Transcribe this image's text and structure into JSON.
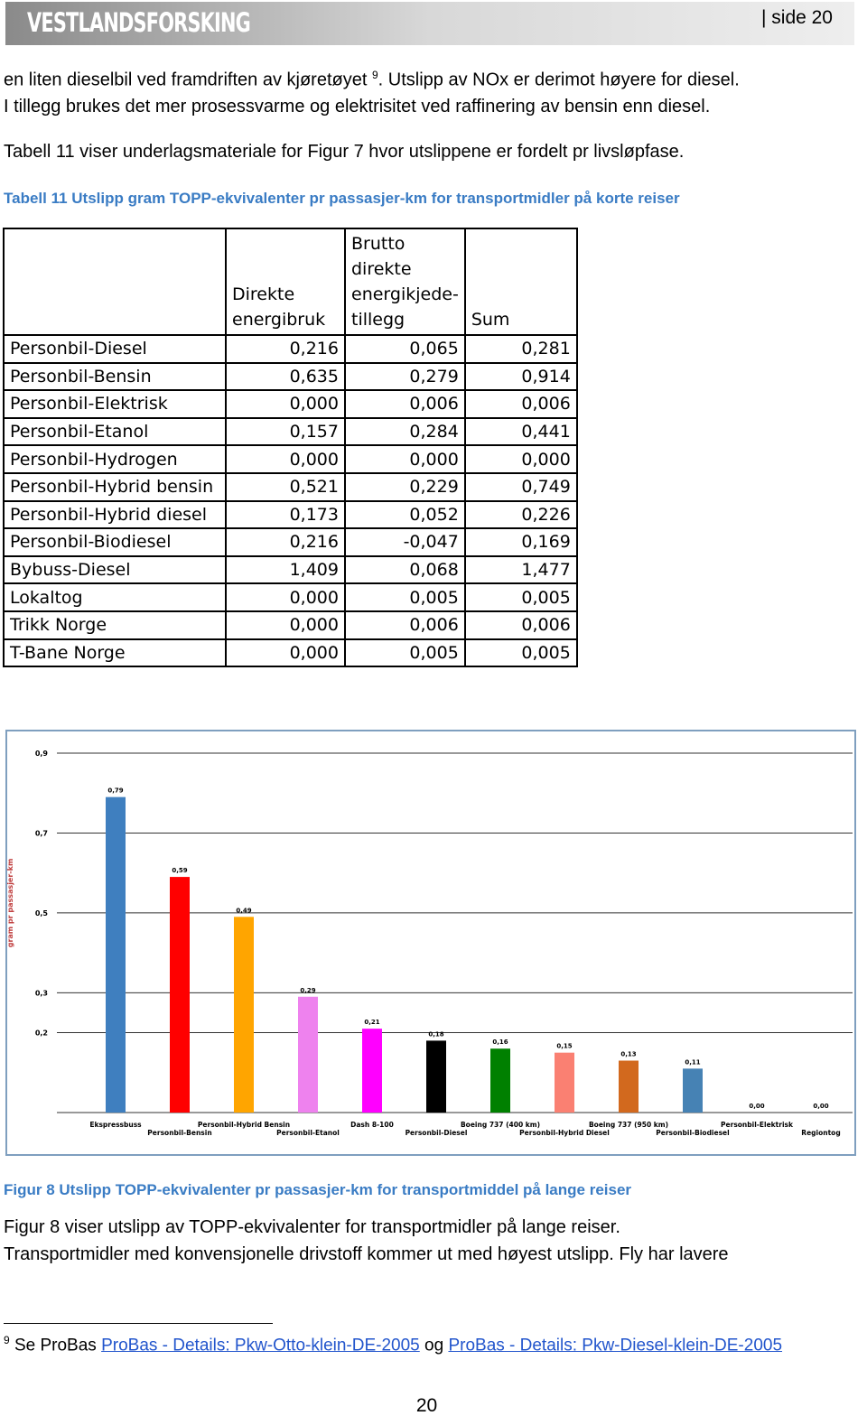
{
  "header": {
    "logo": "VESTLANDSFORSKING",
    "page": "| side 20"
  },
  "paragraphs": [
    {
      "parts": [
        "en liten dieselbil ved framdriften av kjøretøyet ",
        "9",
        ". Utslipp av NOx er derimot høyere for diesel."
      ]
    },
    {
      "parts": [
        "I tillegg brukes det mer prosessvarme og elektrisitet  ved raffinering av bensin enn diesel."
      ]
    },
    {
      "parts": [
        "Tabell 11 viser underlagsmateriale for Figur 7 hvor utslippene er fordelt pr livsløpfase."
      ]
    }
  ],
  "table_caption": "Tabell 11 Utslipp gram TOPP-ekvivalenter pr passasjer-km for transportmidler på korte reiser",
  "table": {
    "header": [
      "Direkte energibruk",
      "Brutto direkte energikjede-tillegg",
      "Sum"
    ],
    "rows": [
      [
        "Personbil-Diesel",
        "0,216",
        "0,065",
        "0,281"
      ],
      [
        "Personbil-Bensin",
        "0,635",
        "0,279",
        "0,914"
      ],
      [
        "Personbil-Elektrisk",
        "0,000",
        "0,006",
        "0,006"
      ],
      [
        "Personbil-Etanol",
        "0,157",
        "0,284",
        "0,441"
      ],
      [
        "Personbil-Hydrogen",
        "0,000",
        "0,000",
        "0,000"
      ],
      [
        "Personbil-Hybrid bensin",
        "0,521",
        "0,229",
        "0,749"
      ],
      [
        "Personbil-Hybrid diesel",
        "0,173",
        "0,052",
        "0,226"
      ],
      [
        "Personbil-Biodiesel",
        "0,216",
        "-0,047",
        "0,169"
      ],
      [
        "Bybuss-Diesel",
        "1,409",
        "0,068",
        "1,477"
      ],
      [
        "Lokaltog",
        "0,000",
        "0,005",
        "0,005"
      ],
      [
        "Trikk Norge",
        "0,000",
        "0,006",
        "0,006"
      ],
      [
        "T-Bane Norge",
        "0,000",
        "0,005",
        "0,005"
      ]
    ]
  },
  "chart_data": {
    "type": "bar",
    "y_label": "gram pr passasjer-km",
    "categories": [
      "Ekspressbuss",
      "Personbil-Bensin",
      "Personbil-Hybrid Bensin",
      "Personbil-Etanol",
      "Dash 8-100",
      "Personbil-Diesel",
      "Boeing  737 (400 km)",
      "Personbil-Hybrid Diesel",
      "Boeing  737  (950 km)",
      "Personbil-Biodiesel",
      "Personbil-Elektrisk",
      "Regiontog"
    ],
    "values": [
      0.79,
      0.59,
      0.49,
      0.29,
      0.21,
      0.18,
      0.16,
      0.15,
      0.13,
      0.11,
      0,
      0
    ],
    "value_labels": [
      "0,79",
      "0,59",
      "0,49",
      "0,29",
      "0,21",
      "0,18",
      "0,16",
      "0,15",
      "0,13",
      "0,11",
      "0,00",
      "0,00"
    ],
    "colors": [
      "#3f7fbf",
      "#ff0000",
      "#ffa500",
      "#ee82ee",
      "#ff00ff",
      "#000000",
      "#008000",
      "#fa8072",
      "#d2691e",
      "#4682b4",
      "#3f7fbf",
      "#3f7fbf"
    ],
    "ylim": [
      0,
      0.9
    ],
    "yticks": [
      {
        "value": 0.9,
        "label": "0,9"
      },
      {
        "value": 0.7,
        "label": "0,7"
      },
      {
        "value": 0.5,
        "label": "0,5"
      },
      {
        "value": 0.3,
        "label": "0,3"
      },
      {
        "value": 0.2,
        "label": "0,2"
      }
    ],
    "grid": true
  },
  "figure_caption": "Figur 8  Utslipp TOPP-ekvivalenter pr passasjer-km for transportmiddel på lange reiser",
  "after": [
    "Figur 8 viser utslipp av TOPP-ekvivalenter for transportmidler på lange reiser.",
    "Transportmidler med konvensjonelle drivstoff kommer ut med høyest utslipp. Fly har lavere"
  ],
  "footnote": {
    "mark": "9",
    "text": "Se ProBas ",
    "link1": "ProBas - Details: Pkw-Otto-klein-DE-2005",
    "mid": " og ",
    "link2": "ProBas - Details: Pkw-Diesel-klein-DE-2005"
  },
  "page_number": "20"
}
